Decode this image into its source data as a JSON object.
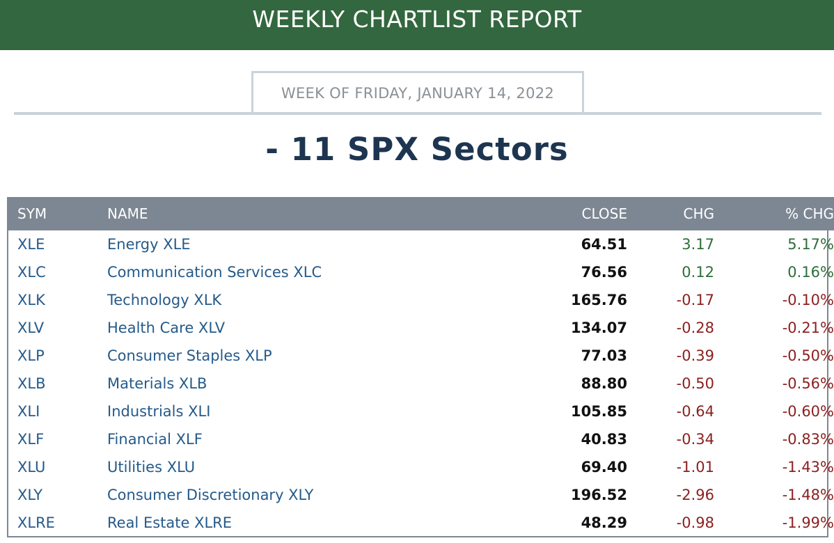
{
  "banner": {
    "title": "WEEKLY CHARTLIST REPORT"
  },
  "week": {
    "label": "WEEK OF FRIDAY, JANUARY 14, 2022"
  },
  "subtitle": "- 11 SPX Sectors",
  "colors": {
    "banner": "#33673f",
    "positive": "#2d6e3a",
    "negative": "#8b1f1f",
    "link": "#245a8a",
    "header": "#7d8793"
  },
  "table": {
    "headers": {
      "sym": "SYM",
      "name": "NAME",
      "close": "CLOSE",
      "chg": "CHG",
      "pct": "% CHG"
    },
    "rows": [
      {
        "sym": "XLE",
        "name": "Energy XLE",
        "close": "64.51",
        "chg": "3.17",
        "pct": "5.17%",
        "dir": "pos"
      },
      {
        "sym": "XLC",
        "name": "Communication Services XLC",
        "close": "76.56",
        "chg": "0.12",
        "pct": "0.16%",
        "dir": "pos"
      },
      {
        "sym": "XLK",
        "name": "Technology XLK",
        "close": "165.76",
        "chg": "-0.17",
        "pct": "-0.10%",
        "dir": "neg"
      },
      {
        "sym": "XLV",
        "name": "Health Care XLV",
        "close": "134.07",
        "chg": "-0.28",
        "pct": "-0.21%",
        "dir": "neg"
      },
      {
        "sym": "XLP",
        "name": "Consumer Staples XLP",
        "close": "77.03",
        "chg": "-0.39",
        "pct": "-0.50%",
        "dir": "neg"
      },
      {
        "sym": "XLB",
        "name": "Materials XLB",
        "close": "88.80",
        "chg": "-0.50",
        "pct": "-0.56%",
        "dir": "neg"
      },
      {
        "sym": "XLI",
        "name": "Industrials XLI",
        "close": "105.85",
        "chg": "-0.64",
        "pct": "-0.60%",
        "dir": "neg"
      },
      {
        "sym": "XLF",
        "name": "Financial XLF",
        "close": "40.83",
        "chg": "-0.34",
        "pct": "-0.83%",
        "dir": "neg"
      },
      {
        "sym": "XLU",
        "name": "Utilities XLU",
        "close": "69.40",
        "chg": "-1.01",
        "pct": "-1.43%",
        "dir": "neg"
      },
      {
        "sym": "XLY",
        "name": "Consumer Discretionary XLY",
        "close": "196.52",
        "chg": "-2.96",
        "pct": "-1.48%",
        "dir": "neg"
      },
      {
        "sym": "XLRE",
        "name": "Real Estate XLRE",
        "close": "48.29",
        "chg": "-0.98",
        "pct": "-1.99%",
        "dir": "neg"
      }
    ]
  }
}
